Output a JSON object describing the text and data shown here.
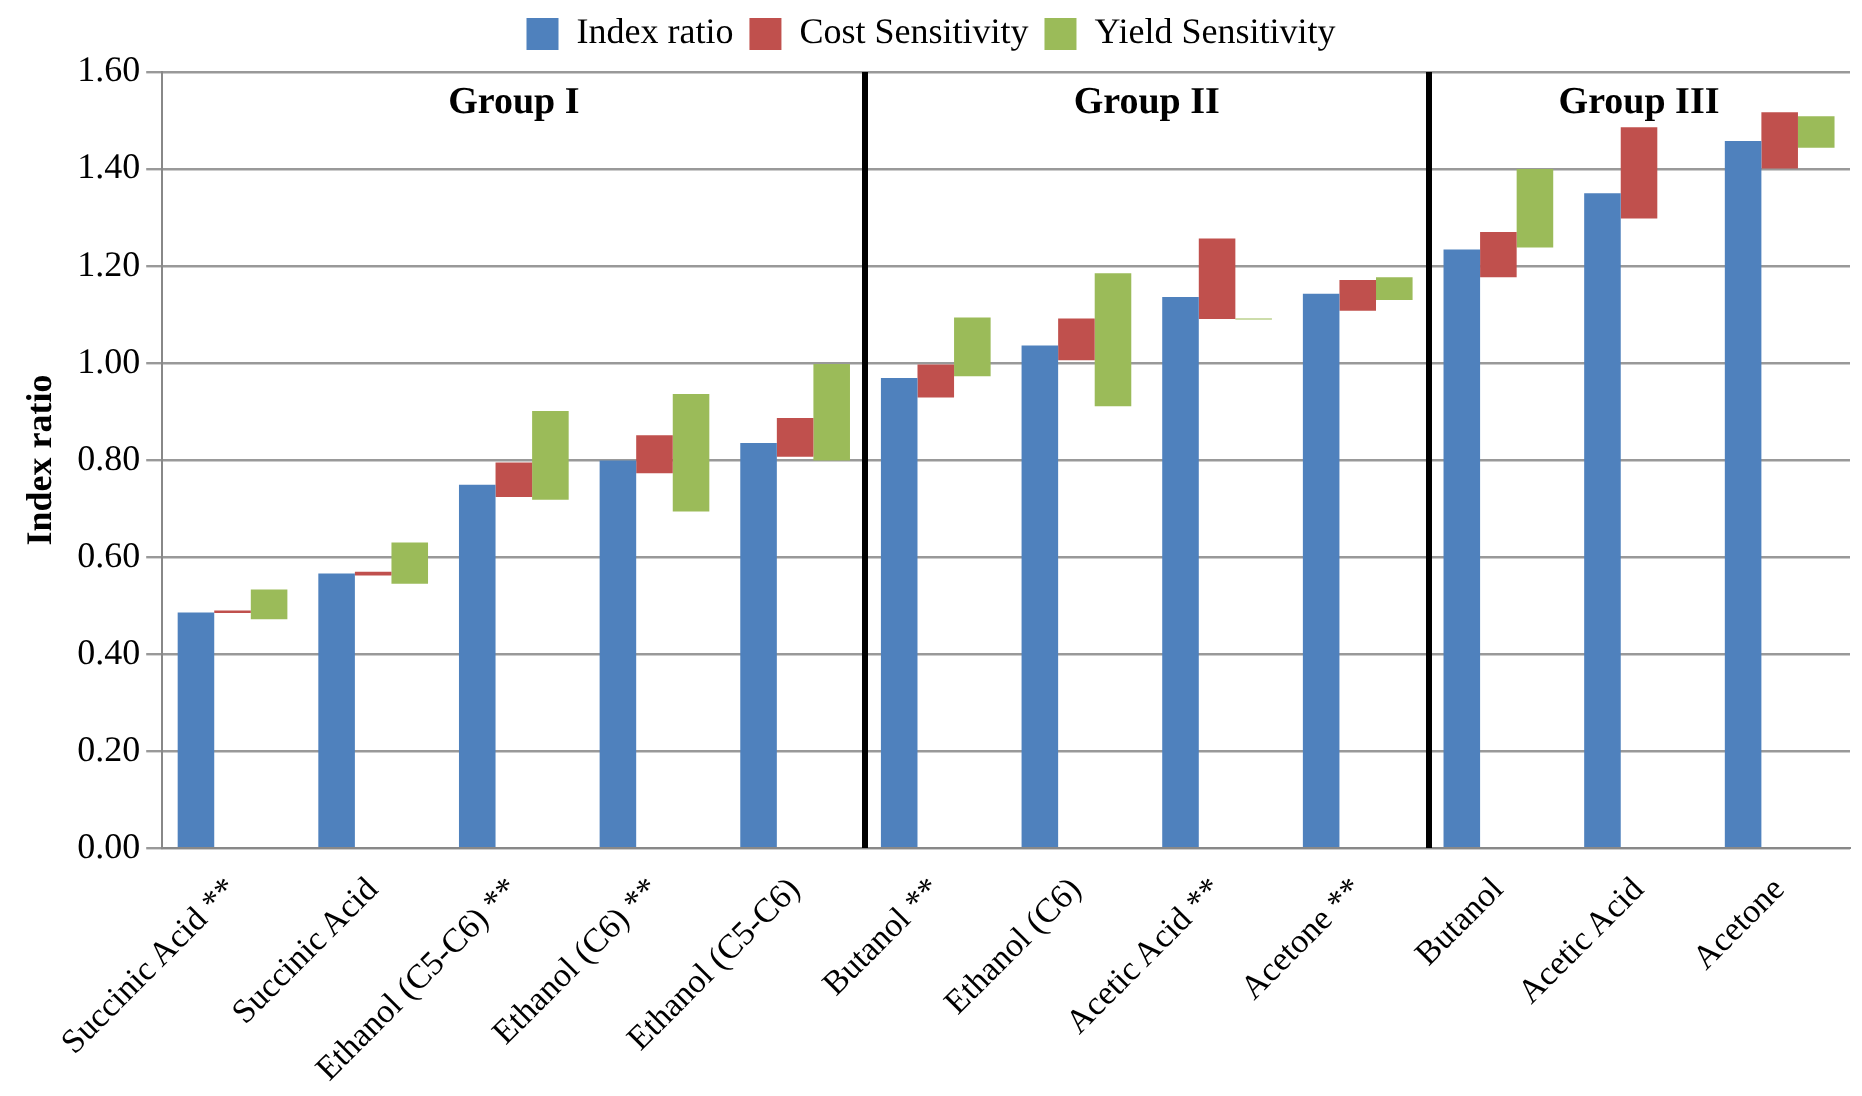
{
  "chart_data": {
    "type": "bar",
    "ylabel": "Index ratio",
    "categories": [
      "Succinic Acid **",
      "Succinic Acid",
      "Ethanol (C5-C6) **",
      "Ethanol (C6) **",
      "Ethanol (C5-C6)",
      "Butanol **",
      "Ethanol (C6)",
      "Acetic Acid **",
      "Acetone **",
      "Butanol",
      "Acetic Acid",
      "Acetone"
    ],
    "series": [
      {
        "name": "Index ratio",
        "color": "#4f81bd",
        "values": [
          0.486,
          0.566,
          0.749,
          0.799,
          0.835,
          0.969,
          1.036,
          1.136,
          1.143,
          1.234,
          1.35,
          1.458
        ]
      },
      {
        "name": "Cost Sensitivity",
        "color": "#c0504d",
        "base": [
          0.485,
          0.562,
          0.724,
          0.773,
          0.807,
          0.929,
          1.006,
          1.091,
          1.108,
          1.177,
          1.298,
          1.401
        ],
        "values": [
          0.005,
          0.008,
          0.071,
          0.078,
          0.08,
          0.068,
          0.086,
          0.166,
          0.063,
          0.093,
          0.188,
          0.116
        ]
      },
      {
        "name": "Yield Sensitivity",
        "color": "#9bbb59",
        "base": [
          0.472,
          0.545,
          0.718,
          0.694,
          0.799,
          0.973,
          0.911,
          1.09,
          1.13,
          1.238,
          null,
          1.444
        ],
        "values": [
          0.061,
          0.085,
          0.183,
          0.242,
          0.199,
          0.121,
          0.274,
          0.002,
          0.047,
          0.162,
          null,
          0.065
        ]
      }
    ],
    "ylim": [
      0,
      1.6
    ],
    "yticks": [
      {
        "value": 0,
        "label": "0.00"
      },
      {
        "value": 0.2,
        "label": "0.20"
      },
      {
        "value": 0.4,
        "label": "0.40"
      },
      {
        "value": 0.6,
        "label": "0.60"
      },
      {
        "value": 0.8,
        "label": "0.80"
      },
      {
        "value": 1,
        "label": "1.00"
      },
      {
        "value": 1.2,
        "label": "1.20"
      },
      {
        "value": 1.4,
        "label": "1.40"
      },
      {
        "value": 1.6,
        "label": "1.60"
      }
    ],
    "grid": "y",
    "legend": "top",
    "annotations": [
      "Group I",
      "Group II",
      "Group III"
    ]
  }
}
